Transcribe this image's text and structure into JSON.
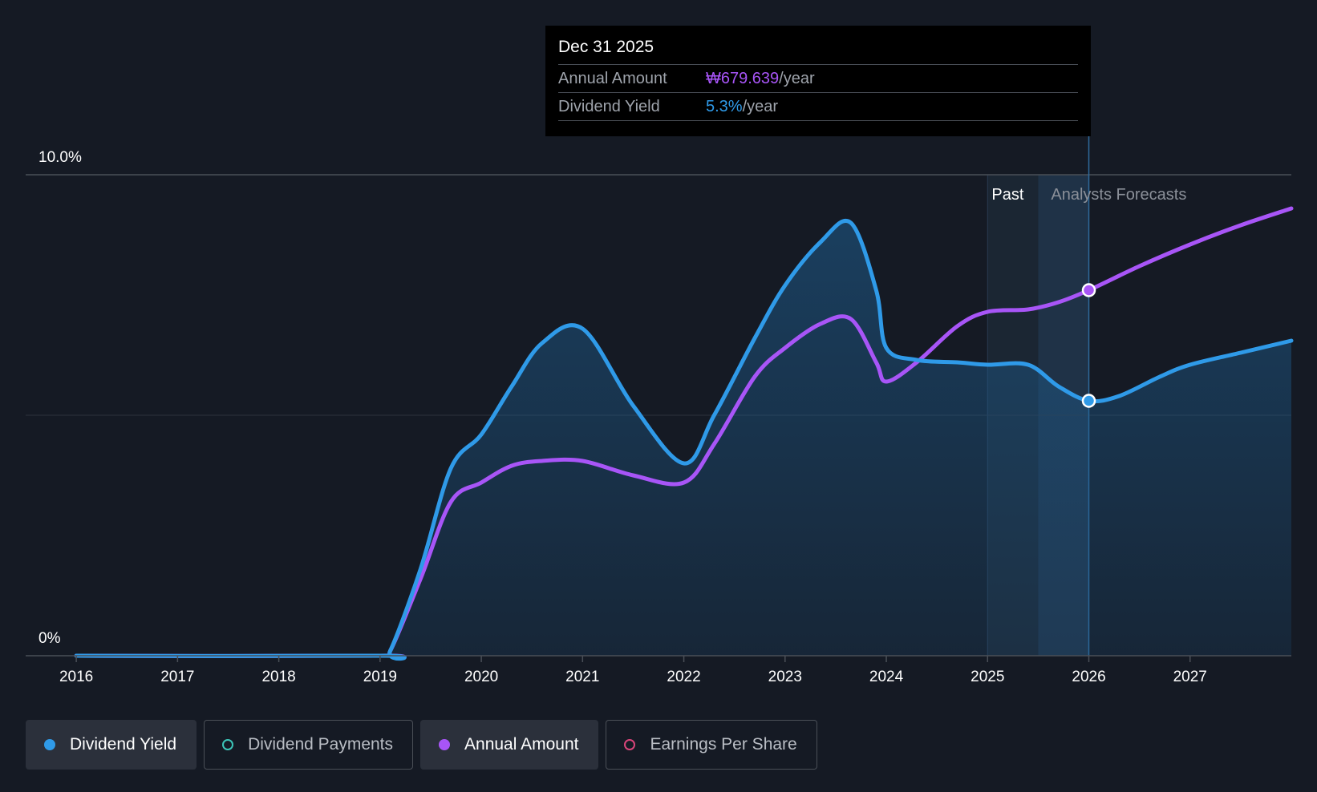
{
  "tooltip": {
    "date": "Dec 31 2025",
    "rows": [
      {
        "label": "Annual Amount",
        "value": "₩679.639",
        "unit": "/year"
      },
      {
        "label": "Dividend Yield",
        "value": "5.3%",
        "unit": "/year"
      }
    ]
  },
  "regions": {
    "past": "Past",
    "forecast": "Analysts Forecasts"
  },
  "legend": [
    {
      "label": "Dividend Yield",
      "color": "#2f9ae8",
      "active": true,
      "filled": true
    },
    {
      "label": "Dividend Payments",
      "color": "#3cc5b8",
      "active": false,
      "filled": false
    },
    {
      "label": "Annual Amount",
      "color": "#a855f7",
      "active": true,
      "filled": true
    },
    {
      "label": "Earnings Per Share",
      "color": "#d9457a",
      "active": false,
      "filled": false
    }
  ],
  "colors": {
    "background": "#151a24",
    "yield": "#2f9ae8",
    "amount": "#a855f7",
    "grid": "#3a3f48"
  },
  "chart_data": {
    "type": "line",
    "ylim": [
      0,
      10
    ],
    "y_tick_labels": [
      "0%",
      "10.0%"
    ],
    "x_tick_labels": [
      "2016",
      "2017",
      "2018",
      "2019",
      "2020",
      "2021",
      "2022",
      "2023",
      "2024",
      "2025",
      "2026",
      "2027"
    ],
    "xlim": [
      2015.5,
      2028.0
    ],
    "past_region": [
      2025.0,
      2025.5
    ],
    "forecast_region": [
      2025.5,
      2026.0
    ],
    "highlight_x": 2026.0,
    "series": [
      {
        "name": "Dividend Yield",
        "points": [
          [
            2016.0,
            0
          ],
          [
            2019.0,
            0
          ],
          [
            2019.1,
            0.1
          ],
          [
            2019.4,
            1.8
          ],
          [
            2019.7,
            3.9
          ],
          [
            2020.0,
            4.6
          ],
          [
            2020.3,
            5.6
          ],
          [
            2020.6,
            6.5
          ],
          [
            2021.0,
            6.8
          ],
          [
            2021.5,
            5.2
          ],
          [
            2022.0,
            4.0
          ],
          [
            2022.3,
            5.0
          ],
          [
            2022.7,
            6.6
          ],
          [
            2023.0,
            7.7
          ],
          [
            2023.35,
            8.6
          ],
          [
            2023.65,
            9.0
          ],
          [
            2023.9,
            7.6
          ],
          [
            2024.0,
            6.4
          ],
          [
            2024.3,
            6.15
          ],
          [
            2024.7,
            6.1
          ],
          [
            2025.0,
            6.05
          ],
          [
            2025.4,
            6.05
          ],
          [
            2025.7,
            5.6
          ],
          [
            2026.0,
            5.3
          ],
          [
            2026.3,
            5.4
          ],
          [
            2026.7,
            5.8
          ],
          [
            2027.0,
            6.05
          ],
          [
            2027.5,
            6.3
          ],
          [
            2028.0,
            6.55
          ]
        ]
      },
      {
        "name": "Annual Amount",
        "points": [
          [
            2016.0,
            0
          ],
          [
            2019.0,
            0
          ],
          [
            2019.1,
            0.1
          ],
          [
            2019.4,
            1.6
          ],
          [
            2019.7,
            3.2
          ],
          [
            2020.0,
            3.6
          ],
          [
            2020.3,
            3.95
          ],
          [
            2020.6,
            4.05
          ],
          [
            2021.0,
            4.05
          ],
          [
            2021.5,
            3.75
          ],
          [
            2022.0,
            3.6
          ],
          [
            2022.3,
            4.4
          ],
          [
            2022.7,
            5.8
          ],
          [
            2023.0,
            6.4
          ],
          [
            2023.35,
            6.9
          ],
          [
            2023.65,
            7.0
          ],
          [
            2023.9,
            6.1
          ],
          [
            2024.0,
            5.7
          ],
          [
            2024.3,
            6.1
          ],
          [
            2024.7,
            6.85
          ],
          [
            2025.0,
            7.15
          ],
          [
            2025.4,
            7.2
          ],
          [
            2025.7,
            7.35
          ],
          [
            2026.0,
            7.6
          ],
          [
            2026.5,
            8.1
          ],
          [
            2027.0,
            8.55
          ],
          [
            2027.5,
            8.95
          ],
          [
            2028.0,
            9.3
          ]
        ]
      }
    ]
  }
}
